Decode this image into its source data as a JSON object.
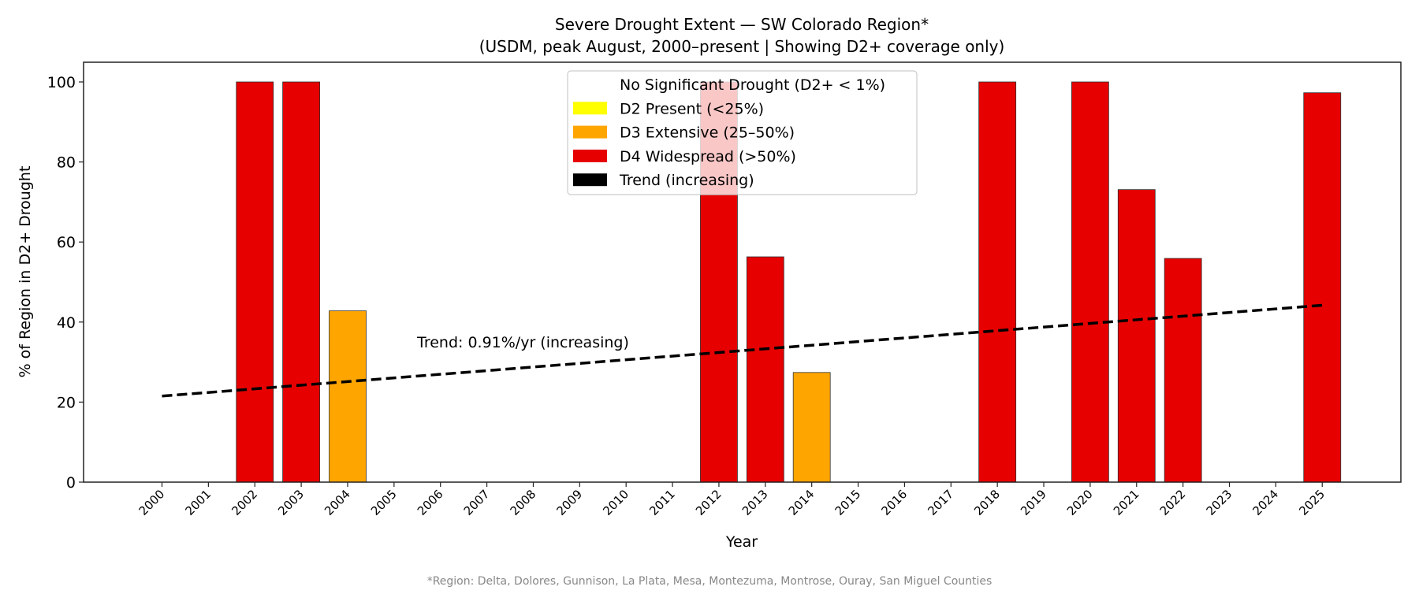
{
  "chart_data": {
    "type": "bar",
    "title": "Severe Drought Extent — SW Colorado Region*",
    "subtitle": "(USDM, peak August, 2000–present | Showing D2+ coverage only)",
    "xlabel": "Year",
    "ylabel": "% of Region in D2+ Drought",
    "ylim": [
      0,
      105
    ],
    "yticks": [
      0,
      20,
      40,
      60,
      80,
      100
    ],
    "grid": false,
    "categories": [
      "2000",
      "2001",
      "2002",
      "2003",
      "2004",
      "2005",
      "2006",
      "2007",
      "2008",
      "2009",
      "2010",
      "2011",
      "2012",
      "2013",
      "2014",
      "2015",
      "2016",
      "2017",
      "2018",
      "2019",
      "2020",
      "2021",
      "2022",
      "2023",
      "2024",
      "2025"
    ],
    "values": [
      0,
      0,
      100,
      100,
      42.8,
      0,
      0,
      0,
      0,
      0,
      0,
      0,
      100,
      56.3,
      27.4,
      0,
      0,
      0,
      100,
      0,
      100,
      73.1,
      55.9,
      0,
      0,
      97.3
    ],
    "colors": {
      "none": "#ffffff",
      "d2": "#ffff00",
      "d3": "#ffa500",
      "d4": "#e60000",
      "trend": "#000000"
    },
    "trend": {
      "start": {
        "x": 2000,
        "y": 21.5
      },
      "end": {
        "x": 2025,
        "y": 44.2
      },
      "slope_per_year": 0.91,
      "style": "dashed"
    },
    "annotation": "Trend: 0.91%/yr (increasing)",
    "legend": {
      "placement": "upper-center",
      "entries": [
        {
          "label": "No Significant Drought (D2+ < 1%)",
          "color": "#ffffff"
        },
        {
          "label": "D2 Present (<25%)",
          "color": "#ffff00"
        },
        {
          "label": "D3 Extensive (25–50%)",
          "color": "#ffa500"
        },
        {
          "label": "D4 Widespread (>50%)",
          "color": "#e60000"
        },
        {
          "label": "Trend (increasing)",
          "color": "#000000"
        }
      ]
    },
    "footnote": "*Region: Delta, Dolores, Gunnison, La Plata, Mesa, Montezuma, Montrose, Ouray, San Miguel Counties"
  }
}
